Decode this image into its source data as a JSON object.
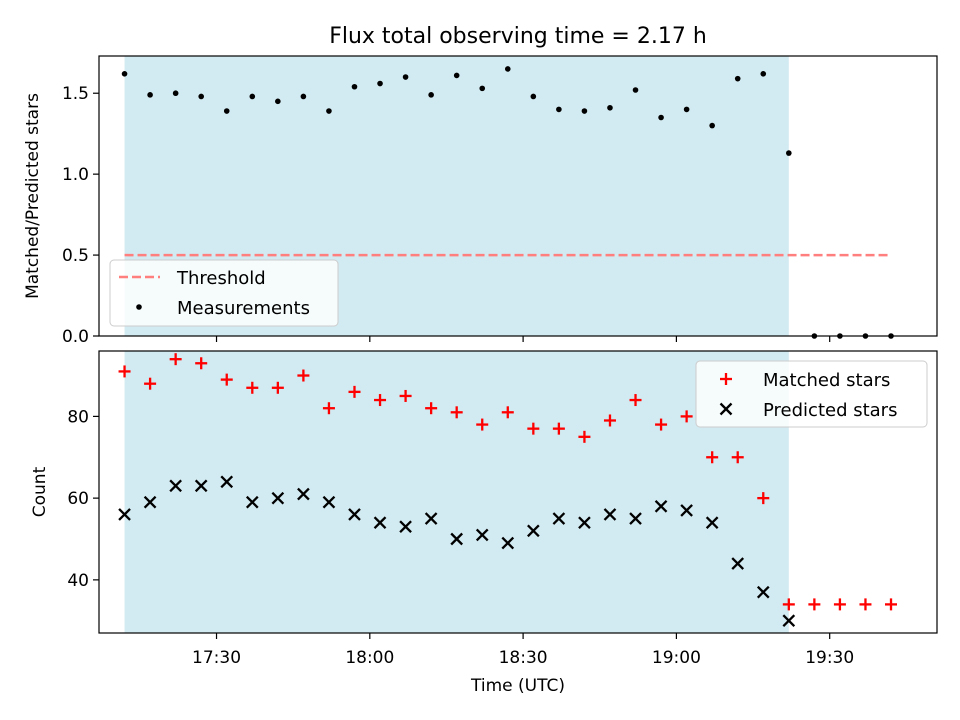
{
  "figure": {
    "title": "Flux total observing time = 2.17 h",
    "background": "#ffffff"
  },
  "colors": {
    "shade": "#add8e6",
    "threshold": "#ff7f7f",
    "measurement": "#000000",
    "matched": "#ff0000",
    "predicted": "#000000"
  },
  "chart_data": [
    {
      "type": "scatter",
      "panel": "top",
      "title": "Flux total observing time = 2.17 h",
      "xlabel": "",
      "ylabel": "Matched/Predicted stars",
      "xlim": [
        "17:07",
        "19:51"
      ],
      "ylim": [
        0,
        1.73
      ],
      "y_ticks": [
        "0.0",
        "0.5",
        "1.0",
        "1.5"
      ],
      "shaded_span": [
        "17:12",
        "19:22"
      ],
      "threshold": {
        "name": "Threshold",
        "value": 0.5,
        "x_range": [
          "17:12",
          "19:42"
        ],
        "style": "dashed"
      },
      "legend": {
        "placement": "lower-left",
        "entries": [
          "Threshold",
          "Measurements"
        ]
      },
      "series": [
        {
          "name": "Measurements",
          "marker": "dot",
          "x": [
            "17:12",
            "17:17",
            "17:22",
            "17:27",
            "17:32",
            "17:37",
            "17:42",
            "17:47",
            "17:52",
            "17:57",
            "18:02",
            "18:07",
            "18:12",
            "18:17",
            "18:22",
            "18:27",
            "18:32",
            "18:37",
            "18:42",
            "18:47",
            "18:52",
            "18:57",
            "19:02",
            "19:07",
            "19:12",
            "19:17",
            "19:22",
            "19:27",
            "19:32",
            "19:37",
            "19:42"
          ],
          "y": [
            1.62,
            1.49,
            1.5,
            1.48,
            1.39,
            1.48,
            1.45,
            1.48,
            1.39,
            1.54,
            1.56,
            1.6,
            1.49,
            1.61,
            1.53,
            1.65,
            1.48,
            1.4,
            1.39,
            1.41,
            1.52,
            1.35,
            1.4,
            1.3,
            1.59,
            1.62,
            1.13,
            0.0,
            0.0,
            0.0,
            0.0
          ]
        }
      ]
    },
    {
      "type": "scatter",
      "panel": "bottom",
      "xlabel": "Time (UTC)",
      "ylabel": "Count",
      "xlim": [
        "17:07",
        "19:51"
      ],
      "ylim": [
        27,
        96
      ],
      "y_ticks": [
        "40",
        "60",
        "80"
      ],
      "x_ticks": [
        "17:30",
        "18:00",
        "18:30",
        "19:00",
        "19:30"
      ],
      "shaded_span": [
        "17:12",
        "19:22"
      ],
      "legend": {
        "placement": "upper-right",
        "entries": [
          "Matched stars",
          "Predicted stars"
        ]
      },
      "series": [
        {
          "name": "Matched stars",
          "marker": "plus",
          "x": [
            "17:12",
            "17:17",
            "17:22",
            "17:27",
            "17:32",
            "17:37",
            "17:42",
            "17:47",
            "17:52",
            "17:57",
            "18:02",
            "18:07",
            "18:12",
            "18:17",
            "18:22",
            "18:27",
            "18:32",
            "18:37",
            "18:42",
            "18:47",
            "18:52",
            "18:57",
            "19:02",
            "19:07",
            "19:12",
            "19:17",
            "19:22",
            "19:27",
            "19:32",
            "19:37",
            "19:42"
          ],
          "y": [
            91,
            88,
            94,
            93,
            89,
            87,
            87,
            90,
            82,
            86,
            84,
            85,
            82,
            81,
            78,
            81,
            77,
            77,
            75,
            79,
            84,
            78,
            80,
            70,
            70,
            60,
            34,
            34,
            34,
            34,
            34
          ]
        },
        {
          "name": "Predicted stars",
          "marker": "x",
          "x": [
            "17:12",
            "17:17",
            "17:22",
            "17:27",
            "17:32",
            "17:37",
            "17:42",
            "17:47",
            "17:52",
            "17:57",
            "18:02",
            "18:07",
            "18:12",
            "18:17",
            "18:22",
            "18:27",
            "18:32",
            "18:37",
            "18:42",
            "18:47",
            "18:52",
            "18:57",
            "19:02",
            "19:07",
            "19:12",
            "19:17",
            "19:22"
          ],
          "y": [
            56,
            59,
            63,
            63,
            64,
            59,
            60,
            61,
            59,
            56,
            54,
            53,
            55,
            50,
            51,
            49,
            52,
            55,
            54,
            56,
            55,
            58,
            57,
            54,
            44,
            37,
            30
          ]
        }
      ]
    }
  ]
}
